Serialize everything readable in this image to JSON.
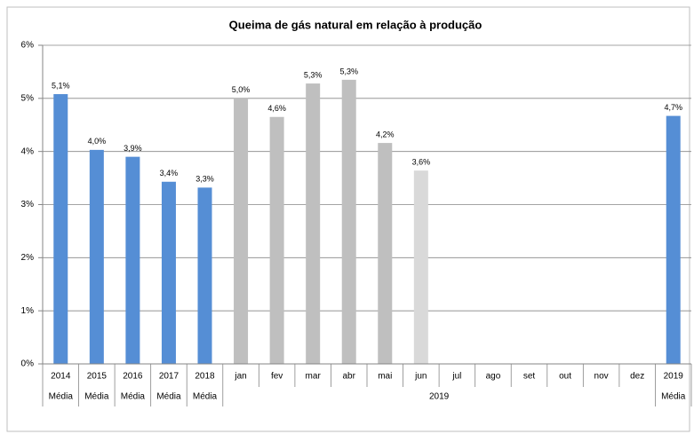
{
  "chart_data": {
    "type": "bar",
    "title": "Queima de gás natural em relação à produção",
    "categories": [
      "2014",
      "2015",
      "2016",
      "2017",
      "2018",
      "jan",
      "fev",
      "mar",
      "abr",
      "mai",
      "jun",
      "jul",
      "ago",
      "set",
      "out",
      "nov",
      "dez",
      "2019"
    ],
    "groups": [
      {
        "label": "Média",
        "size": 1
      },
      {
        "label": "Média",
        "size": 1
      },
      {
        "label": "Média",
        "size": 1
      },
      {
        "label": "Média",
        "size": 1
      },
      {
        "label": "Média",
        "size": 1
      },
      {
        "label": "2019",
        "size": 12
      },
      {
        "label": "Média",
        "size": 1
      }
    ],
    "values": [
      5.08,
      4.03,
      3.9,
      3.43,
      3.32,
      5.0,
      4.65,
      5.28,
      5.35,
      4.16,
      3.64,
      null,
      null,
      null,
      null,
      null,
      null,
      4.67
    ],
    "value_labels": [
      "5,1%",
      "4,0%",
      "3,9%",
      "3,4%",
      "3,3%",
      "5,0%",
      "4,6%",
      "5,3%",
      "5,3%",
      "4,2%",
      "3,6%",
      null,
      null,
      null,
      null,
      null,
      null,
      "4,7%"
    ],
    "colors": [
      "#558ed5",
      "#558ed5",
      "#558ed5",
      "#558ed5",
      "#558ed5",
      "#bfbfbf",
      "#bfbfbf",
      "#bfbfbf",
      "#bfbfbf",
      "#bfbfbf",
      "#d9d9d9",
      null,
      null,
      null,
      null,
      null,
      null,
      "#558ed5"
    ],
    "ylim": [
      0,
      6
    ],
    "yticks": [
      {
        "value": 0,
        "label": "0%"
      },
      {
        "value": 1,
        "label": "1%"
      },
      {
        "value": 2,
        "label": "2%"
      },
      {
        "value": 3,
        "label": "3%"
      },
      {
        "value": 4,
        "label": "4%"
      },
      {
        "value": 5,
        "label": "5%"
      },
      {
        "value": 6,
        "label": "6%"
      }
    ],
    "grid": true
  }
}
